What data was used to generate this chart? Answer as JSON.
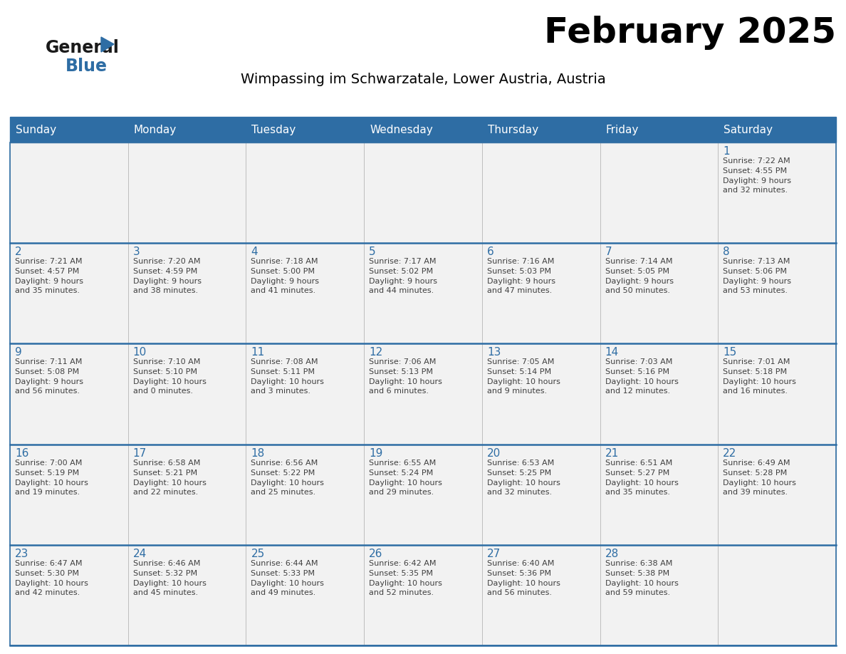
{
  "title": "February 2025",
  "subtitle": "Wimpassing im Schwarzatale, Lower Austria, Austria",
  "days_of_week": [
    "Sunday",
    "Monday",
    "Tuesday",
    "Wednesday",
    "Thursday",
    "Friday",
    "Saturday"
  ],
  "header_bg": "#2E6DA4",
  "header_text": "#FFFFFF",
  "cell_bg": "#F2F2F2",
  "border_color": "#2E6DA4",
  "day_num_color": "#2E6DA4",
  "text_color": "#404040",
  "title_color": "#000000",
  "subtitle_color": "#000000",
  "logo_general_color": "#1a1a1a",
  "logo_blue_color": "#2E6DA4",
  "calendar_data": [
    {
      "day": 1,
      "col": 6,
      "row": 0,
      "sunrise": "7:22 AM",
      "sunset": "4:55 PM",
      "daylight_hours": 9,
      "daylight_minutes": 32
    },
    {
      "day": 2,
      "col": 0,
      "row": 1,
      "sunrise": "7:21 AM",
      "sunset": "4:57 PM",
      "daylight_hours": 9,
      "daylight_minutes": 35
    },
    {
      "day": 3,
      "col": 1,
      "row": 1,
      "sunrise": "7:20 AM",
      "sunset": "4:59 PM",
      "daylight_hours": 9,
      "daylight_minutes": 38
    },
    {
      "day": 4,
      "col": 2,
      "row": 1,
      "sunrise": "7:18 AM",
      "sunset": "5:00 PM",
      "daylight_hours": 9,
      "daylight_minutes": 41
    },
    {
      "day": 5,
      "col": 3,
      "row": 1,
      "sunrise": "7:17 AM",
      "sunset": "5:02 PM",
      "daylight_hours": 9,
      "daylight_minutes": 44
    },
    {
      "day": 6,
      "col": 4,
      "row": 1,
      "sunrise": "7:16 AM",
      "sunset": "5:03 PM",
      "daylight_hours": 9,
      "daylight_minutes": 47
    },
    {
      "day": 7,
      "col": 5,
      "row": 1,
      "sunrise": "7:14 AM",
      "sunset": "5:05 PM",
      "daylight_hours": 9,
      "daylight_minutes": 50
    },
    {
      "day": 8,
      "col": 6,
      "row": 1,
      "sunrise": "7:13 AM",
      "sunset": "5:06 PM",
      "daylight_hours": 9,
      "daylight_minutes": 53
    },
    {
      "day": 9,
      "col": 0,
      "row": 2,
      "sunrise": "7:11 AM",
      "sunset": "5:08 PM",
      "daylight_hours": 9,
      "daylight_minutes": 56
    },
    {
      "day": 10,
      "col": 1,
      "row": 2,
      "sunrise": "7:10 AM",
      "sunset": "5:10 PM",
      "daylight_hours": 10,
      "daylight_minutes": 0
    },
    {
      "day": 11,
      "col": 2,
      "row": 2,
      "sunrise": "7:08 AM",
      "sunset": "5:11 PM",
      "daylight_hours": 10,
      "daylight_minutes": 3
    },
    {
      "day": 12,
      "col": 3,
      "row": 2,
      "sunrise": "7:06 AM",
      "sunset": "5:13 PM",
      "daylight_hours": 10,
      "daylight_minutes": 6
    },
    {
      "day": 13,
      "col": 4,
      "row": 2,
      "sunrise": "7:05 AM",
      "sunset": "5:14 PM",
      "daylight_hours": 10,
      "daylight_minutes": 9
    },
    {
      "day": 14,
      "col": 5,
      "row": 2,
      "sunrise": "7:03 AM",
      "sunset": "5:16 PM",
      "daylight_hours": 10,
      "daylight_minutes": 12
    },
    {
      "day": 15,
      "col": 6,
      "row": 2,
      "sunrise": "7:01 AM",
      "sunset": "5:18 PM",
      "daylight_hours": 10,
      "daylight_minutes": 16
    },
    {
      "day": 16,
      "col": 0,
      "row": 3,
      "sunrise": "7:00 AM",
      "sunset": "5:19 PM",
      "daylight_hours": 10,
      "daylight_minutes": 19
    },
    {
      "day": 17,
      "col": 1,
      "row": 3,
      "sunrise": "6:58 AM",
      "sunset": "5:21 PM",
      "daylight_hours": 10,
      "daylight_minutes": 22
    },
    {
      "day": 18,
      "col": 2,
      "row": 3,
      "sunrise": "6:56 AM",
      "sunset": "5:22 PM",
      "daylight_hours": 10,
      "daylight_minutes": 25
    },
    {
      "day": 19,
      "col": 3,
      "row": 3,
      "sunrise": "6:55 AM",
      "sunset": "5:24 PM",
      "daylight_hours": 10,
      "daylight_minutes": 29
    },
    {
      "day": 20,
      "col": 4,
      "row": 3,
      "sunrise": "6:53 AM",
      "sunset": "5:25 PM",
      "daylight_hours": 10,
      "daylight_minutes": 32
    },
    {
      "day": 21,
      "col": 5,
      "row": 3,
      "sunrise": "6:51 AM",
      "sunset": "5:27 PM",
      "daylight_hours": 10,
      "daylight_minutes": 35
    },
    {
      "day": 22,
      "col": 6,
      "row": 3,
      "sunrise": "6:49 AM",
      "sunset": "5:28 PM",
      "daylight_hours": 10,
      "daylight_minutes": 39
    },
    {
      "day": 23,
      "col": 0,
      "row": 4,
      "sunrise": "6:47 AM",
      "sunset": "5:30 PM",
      "daylight_hours": 10,
      "daylight_minutes": 42
    },
    {
      "day": 24,
      "col": 1,
      "row": 4,
      "sunrise": "6:46 AM",
      "sunset": "5:32 PM",
      "daylight_hours": 10,
      "daylight_minutes": 45
    },
    {
      "day": 25,
      "col": 2,
      "row": 4,
      "sunrise": "6:44 AM",
      "sunset": "5:33 PM",
      "daylight_hours": 10,
      "daylight_minutes": 49
    },
    {
      "day": 26,
      "col": 3,
      "row": 4,
      "sunrise": "6:42 AM",
      "sunset": "5:35 PM",
      "daylight_hours": 10,
      "daylight_minutes": 52
    },
    {
      "day": 27,
      "col": 4,
      "row": 4,
      "sunrise": "6:40 AM",
      "sunset": "5:36 PM",
      "daylight_hours": 10,
      "daylight_minutes": 56
    },
    {
      "day": 28,
      "col": 5,
      "row": 4,
      "sunrise": "6:38 AM",
      "sunset": "5:38 PM",
      "daylight_hours": 10,
      "daylight_minutes": 59
    }
  ],
  "figsize": [
    11.88,
    9.18
  ],
  "dpi": 100
}
